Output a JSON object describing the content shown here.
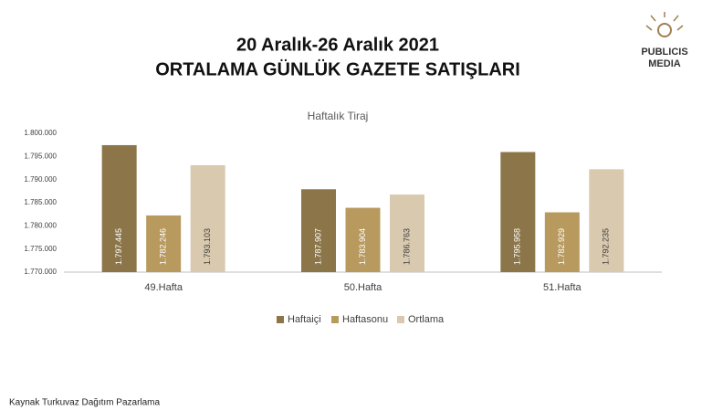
{
  "header": {
    "title_line1": "20 Aralık-26 Aralık 2021",
    "title_line2": "ORTALAMA GÜNLÜK GAZETE SATIŞLARI",
    "logo_line1": "PUBLICIS",
    "logo_line2": "MEDIA"
  },
  "chart_data": {
    "type": "bar",
    "title": "Haftalık Tiraj",
    "categories": [
      "49.Hafta",
      "50.Hafta",
      "51.Hafta"
    ],
    "series": [
      {
        "name": "Haftaiçi",
        "color": "#8c7649",
        "values": [
          1797445,
          1787907,
          1795958
        ],
        "value_labels": [
          "1.797.445",
          "1.787.907",
          "1.795.958"
        ]
      },
      {
        "name": "Haftasonu",
        "color": "#b89a5f",
        "values": [
          1782246,
          1783904,
          1782929
        ],
        "value_labels": [
          "1.782.246",
          "1.783.904",
          "1.782.929"
        ]
      },
      {
        "name": "Ortlama",
        "color": "#d8c9af",
        "values": [
          1793103,
          1786763,
          1792235
        ],
        "value_labels": [
          "1.793.103",
          "1.786.763",
          "1.792.235"
        ]
      }
    ],
    "ylim": [
      1770000,
      1800000
    ],
    "yticks": [
      {
        "value": 1770000,
        "label": "1.770.000"
      },
      {
        "value": 1775000,
        "label": "1.775.000"
      },
      {
        "value": 1780000,
        "label": "1.780.000"
      },
      {
        "value": 1785000,
        "label": "1.785.000"
      },
      {
        "value": 1790000,
        "label": "1.790.000"
      },
      {
        "value": 1795000,
        "label": "1.795.000"
      },
      {
        "value": 1800000,
        "label": "1.800.000"
      }
    ],
    "grid": false,
    "legend": "bottom"
  },
  "footer": {
    "source": "Kaynak Turkuvaz Dağıtım Pazarlama"
  }
}
